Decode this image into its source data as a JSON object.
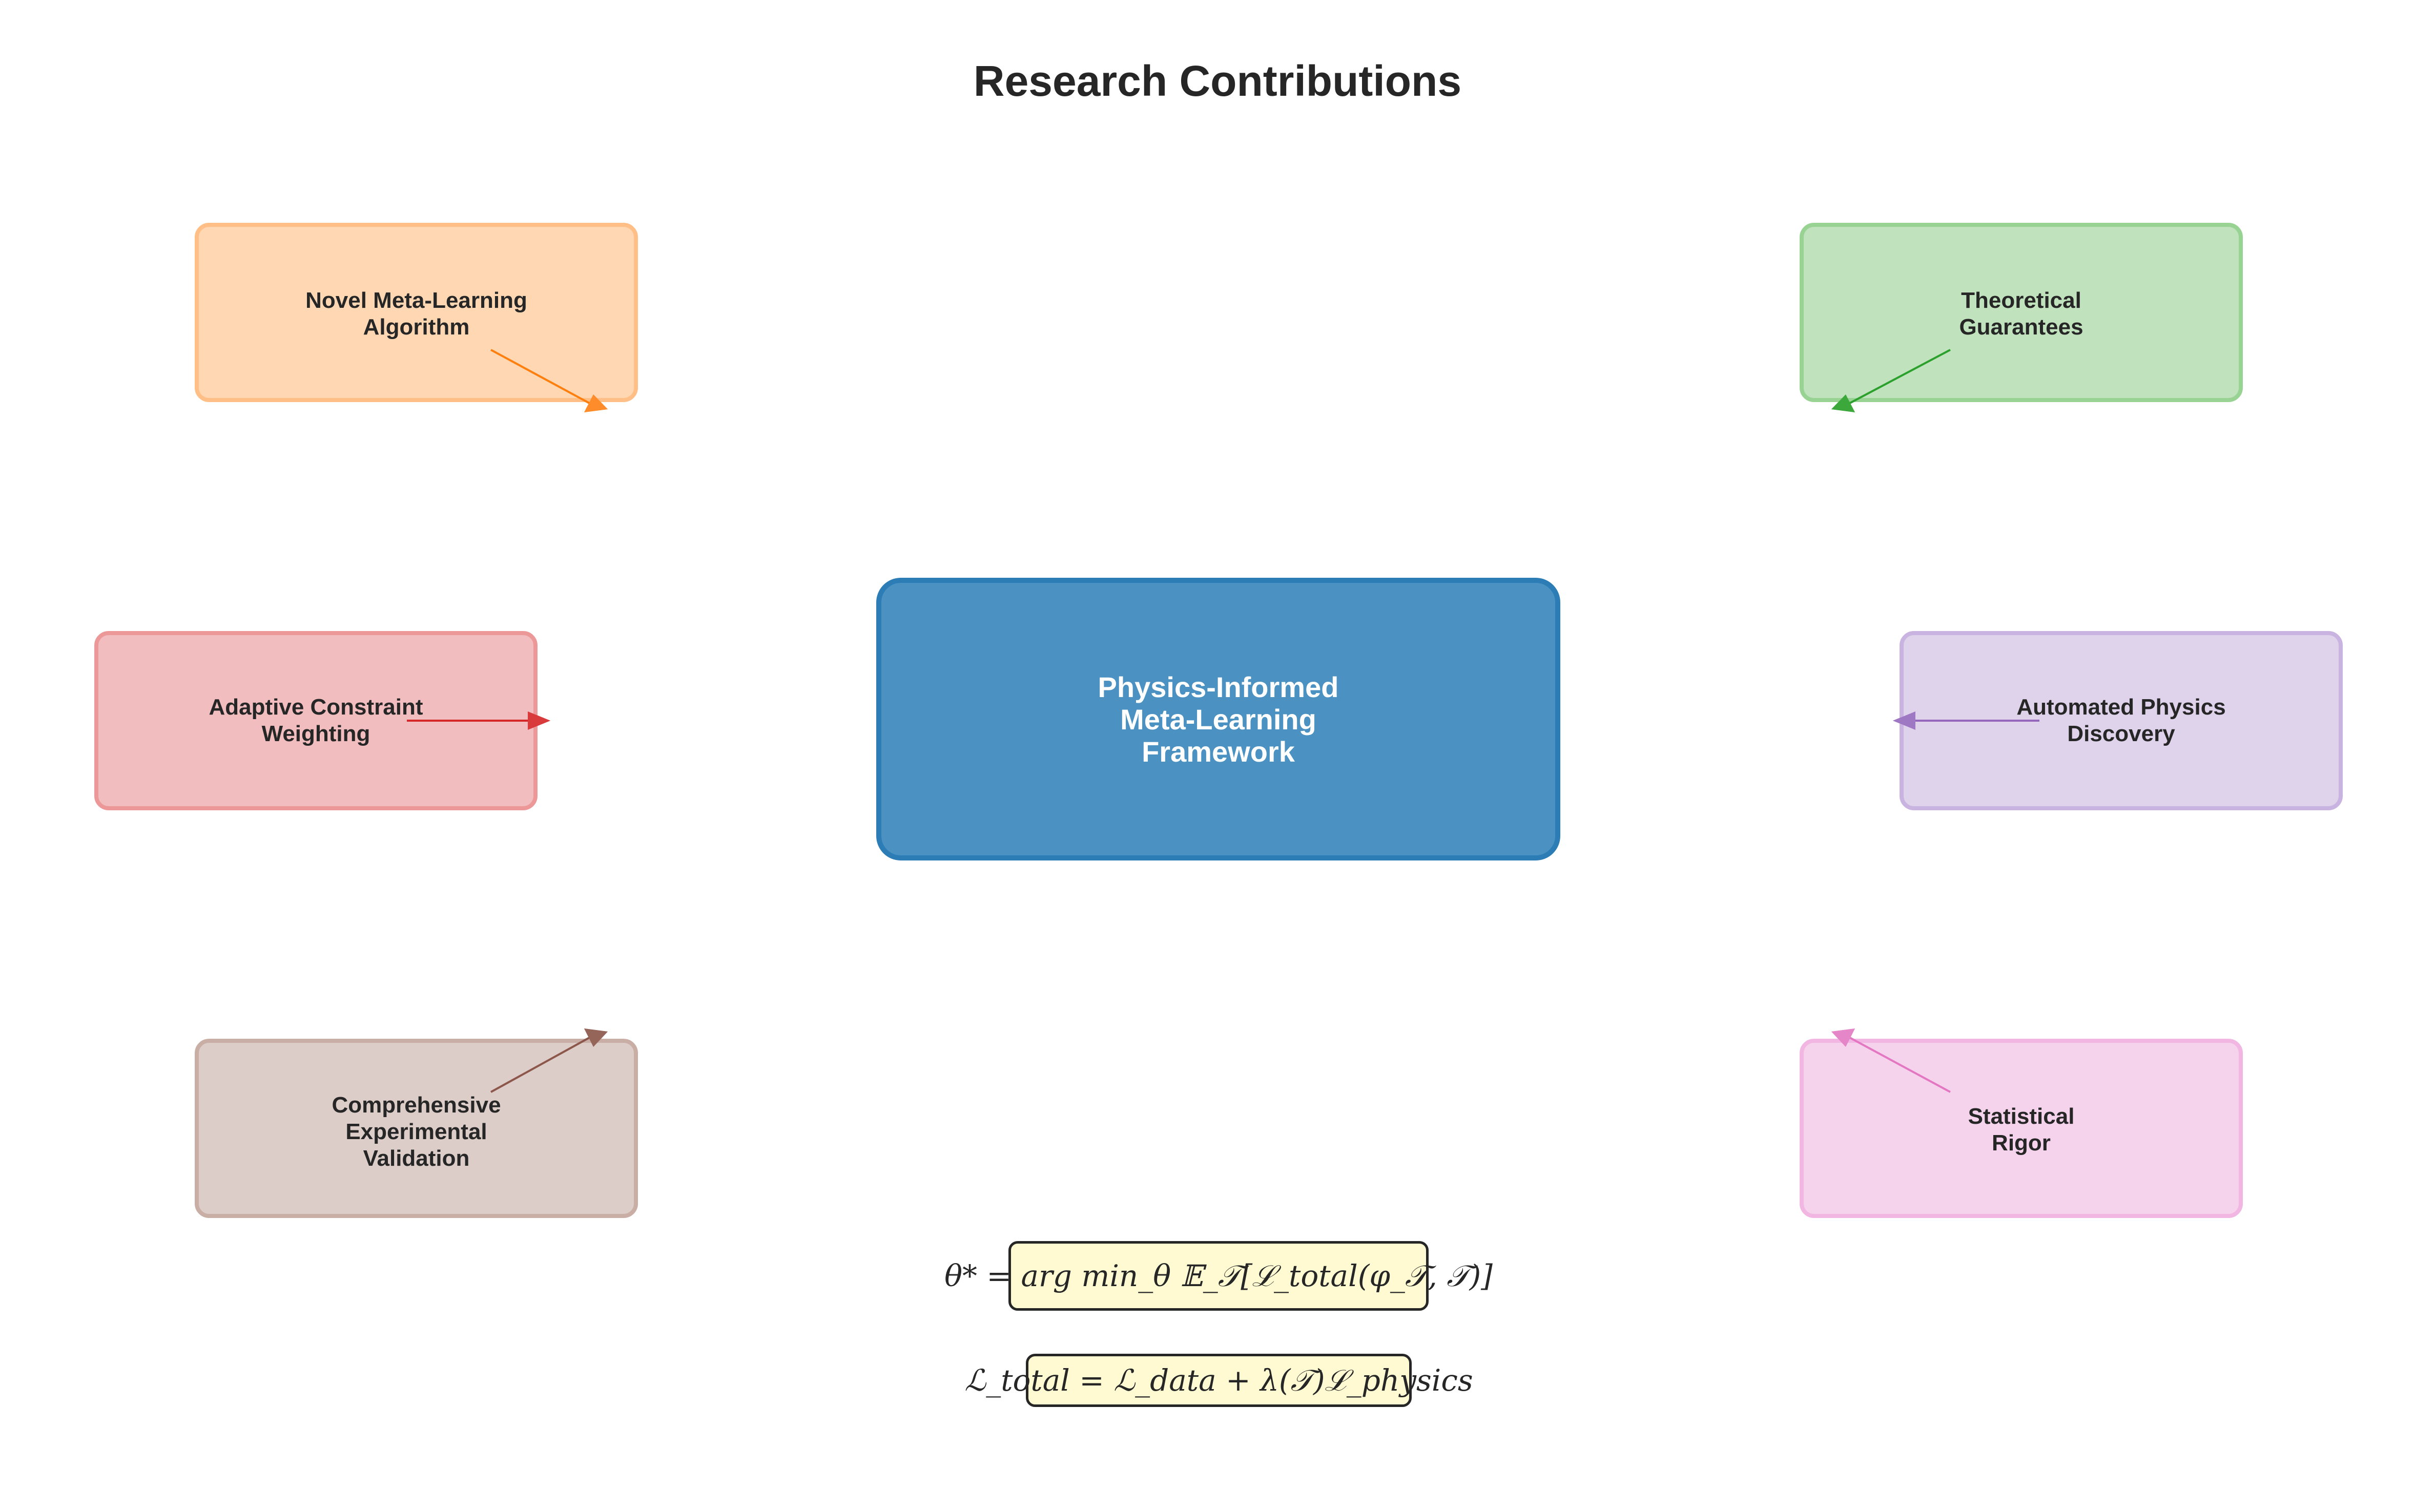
{
  "title": "Research Contributions",
  "center": {
    "label": "Physics-Informed\nMeta-Learning\nFramework",
    "color": "#4b92c3"
  },
  "contributions": [
    {
      "label": "Novel Meta-Learning\nAlgorithm",
      "color": "#ff7f0e"
    },
    {
      "label": "Theoretical\nGuarantees",
      "color": "#2ca02c"
    },
    {
      "label": "Adaptive Constraint\nWeighting",
      "color": "#d62728"
    },
    {
      "label": "Automated Physics\nDiscovery",
      "color": "#9467bd"
    },
    {
      "label": "Comprehensive\nExperimental\nValidation",
      "color": "#8c564b"
    },
    {
      "label": "Statistical\nRigor",
      "color": "#e377c2"
    }
  ],
  "equations": {
    "objective": "θ* = arg min_θ 𝔼_𝒯[ℒ_total(φ_𝒯, 𝒯)]",
    "loss": "ℒ_total = ℒ_data + λ(𝒯)ℒ_physics"
  }
}
